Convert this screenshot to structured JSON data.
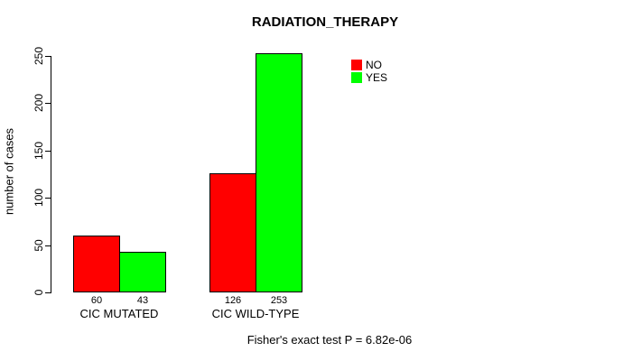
{
  "chart_data": {
    "type": "bar",
    "title": "RADIATION_THERAPY",
    "ylabel": "number of cases",
    "xlabel": "",
    "categories": [
      "CIC MUTATED",
      "CIC WILD-TYPE"
    ],
    "series": [
      {
        "name": "NO",
        "color": "#FF0000",
        "values": [
          60,
          126
        ]
      },
      {
        "name": "YES",
        "color": "#00FF00",
        "values": [
          43,
          253
        ]
      }
    ],
    "bar_value_labels": [
      [
        "60",
        "43"
      ],
      [
        "126",
        "253"
      ]
    ],
    "yticks": [
      0,
      50,
      100,
      150,
      200,
      250
    ],
    "ylim": [
      0,
      250
    ],
    "grid": false,
    "legend_position": "top-right",
    "legend_entries": [
      "NO",
      "YES"
    ],
    "annotation": "Fisher's exact test P = 6.82e-06"
  },
  "colors": {
    "bar_no": "#FF0000",
    "bar_yes": "#00FF00",
    "axis": "#000000",
    "text": "#000000",
    "background": "#FFFFFF"
  }
}
